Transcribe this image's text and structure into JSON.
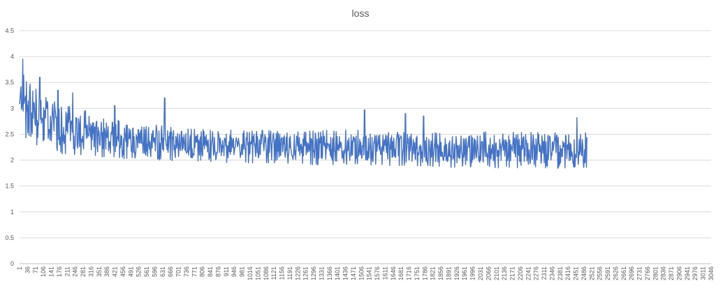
{
  "chart_data": {
    "type": "line",
    "title": "loss",
    "xlabel": "",
    "ylabel": "",
    "ylim": [
      0,
      4.5
    ],
    "yticks": [
      "0",
      "0.5",
      "1",
      "1.5",
      "2",
      "2.5",
      "3",
      "3.5",
      "4",
      "4.5"
    ],
    "xlim": [
      1,
      3046
    ],
    "xticks": [
      "1",
      "36",
      "71",
      "106",
      "141",
      "176",
      "211",
      "246",
      "281",
      "316",
      "351",
      "386",
      "421",
      "456",
      "491",
      "526",
      "561",
      "596",
      "631",
      "666",
      "701",
      "736",
      "771",
      "806",
      "841",
      "876",
      "911",
      "946",
      "981",
      "1016",
      "1051",
      "1086",
      "1121",
      "1156",
      "1191",
      "1226",
      "1261",
      "1296",
      "1331",
      "1366",
      "1401",
      "1436",
      "1471",
      "1506",
      "1541",
      "1576",
      "1611",
      "1646",
      "1681",
      "1716",
      "1751",
      "1786",
      "1821",
      "1856",
      "1891",
      "1926",
      "1961",
      "1996",
      "2031",
      "2066",
      "2101",
      "2136",
      "2171",
      "2206",
      "2241",
      "2276",
      "2311",
      "2346",
      "2381",
      "2416",
      "2451",
      "2486",
      "2521",
      "2556",
      "2591",
      "2626",
      "2661",
      "2696",
      "2731",
      "2766",
      "2801",
      "2836",
      "2871",
      "2906",
      "2941",
      "2976",
      "3011",
      "3046"
    ],
    "grid": true,
    "legend": "none",
    "series_color": "#4472C4",
    "series": [
      {
        "x": [
          1,
          10,
          30,
          60,
          100,
          150,
          200,
          300,
          400,
          500,
          600,
          700,
          800,
          900,
          1000,
          1100,
          1200,
          1300,
          1400,
          1500,
          1600,
          1700,
          1800,
          1900,
          2000,
          2100,
          2200,
          2300,
          2400,
          2500
        ],
        "upper": [
          3.2,
          3.95,
          3.65,
          3.6,
          3.25,
          3.3,
          3.1,
          2.95,
          2.8,
          2.75,
          2.7,
          2.65,
          2.6,
          2.6,
          2.6,
          2.6,
          2.55,
          2.6,
          2.6,
          2.6,
          2.6,
          2.55,
          2.55,
          2.5,
          2.55,
          2.55,
          2.55,
          2.55,
          2.55,
          2.55
        ],
        "lower": [
          2.9,
          2.75,
          2.4,
          2.3,
          2.2,
          2.15,
          2.1,
          2.05,
          2.05,
          2.0,
          2.0,
          1.98,
          1.95,
          1.93,
          1.93,
          1.92,
          1.92,
          1.9,
          1.9,
          1.9,
          1.9,
          1.88,
          1.88,
          1.86,
          1.86,
          1.85,
          1.85,
          1.84,
          1.84,
          1.85
        ],
        "spikes": [
          {
            "x": 15,
            "y": 3.95
          },
          {
            "x": 90,
            "y": 3.6
          },
          {
            "x": 170,
            "y": 3.35
          },
          {
            "x": 235,
            "y": 3.3
          },
          {
            "x": 420,
            "y": 3.05
          },
          {
            "x": 640,
            "y": 3.2
          },
          {
            "x": 1520,
            "y": 2.97
          },
          {
            "x": 1700,
            "y": 2.9
          },
          {
            "x": 1780,
            "y": 2.85
          },
          {
            "x": 2455,
            "y": 2.82
          }
        ]
      }
    ]
  }
}
